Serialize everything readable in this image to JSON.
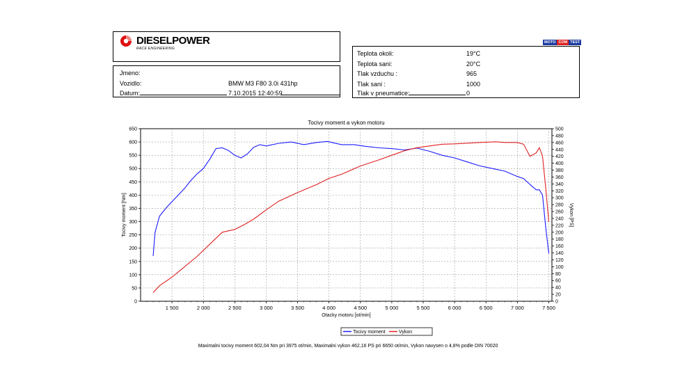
{
  "header": {
    "brand_name": "DIESELPOWER",
    "brand_tagline": "RACE ENGINEERING",
    "badge_moto": "MOTO",
    "badge_com": "COM",
    "badge_test": "TEST"
  },
  "vehicle": {
    "rows": [
      {
        "label": "Jmeno:",
        "value": ""
      },
      {
        "label": "Vozidlo:",
        "value": "BMW M3 F80 3.0i 431hp"
      },
      {
        "label": "Datum:",
        "value": "7.10.2015 12:40:59"
      }
    ]
  },
  "conditions": {
    "rows": [
      {
        "label": "Teplota okoli:",
        "value": "19°C"
      },
      {
        "label": "Teplota sani:",
        "value": "20°C"
      },
      {
        "label": "Tlak vzduchu :",
        "value": "965"
      },
      {
        "label": "Tlak sani :",
        "value": "1000"
      },
      {
        "label": "Tlak v pneumatice:",
        "value": "0"
      }
    ]
  },
  "summary": "Maximalni tocivy moment 602,04 Nm pri 3975 ot/min,  Maximalni vykon 462,16 PS pri 6650 ot/min,  Vykon navysen o 4,8% podle DIN 70020",
  "colors": {
    "torque": "#1a1aff",
    "power": "#e02020",
    "grid": "#9a9a9a"
  },
  "chart_data": {
    "type": "line",
    "title": "Tocivy moment a vykon motoru",
    "xlabel": "Otacky motoru [ot/min]",
    "ylabel_left": "Tocivy moment [Nm]",
    "ylabel_right": "Vykon [PS]",
    "xlim": [
      1000,
      7550
    ],
    "ylim_left": [
      0,
      650
    ],
    "ylim_right": [
      0,
      500
    ],
    "x_ticks": [
      1500,
      2000,
      2500,
      3000,
      3500,
      4000,
      4500,
      5000,
      5500,
      6000,
      6500,
      7000,
      7500
    ],
    "x_tick_labels": [
      "1 500",
      "2 000",
      "2 500",
      "3 000",
      "3 500",
      "4 000",
      "4 500",
      "5 000",
      "5 500",
      "6 000",
      "6 500",
      "7 000",
      "7 500"
    ],
    "y_left_ticks": [
      0,
      50,
      100,
      150,
      200,
      250,
      300,
      350,
      400,
      450,
      500,
      550,
      600,
      650
    ],
    "y_right_ticks": [
      0,
      20,
      40,
      60,
      80,
      100,
      120,
      140,
      160,
      180,
      200,
      220,
      240,
      260,
      280,
      300,
      320,
      340,
      360,
      380,
      400,
      420,
      440,
      460,
      480,
      500
    ],
    "grid": true,
    "legend": "bottom-center",
    "series": [
      {
        "name": "Tocivy moment",
        "axis": "left",
        "x": [
          1200,
          1230,
          1300,
          1400,
          1500,
          1600,
          1700,
          1800,
          1900,
          2000,
          2100,
          2200,
          2300,
          2400,
          2500,
          2600,
          2700,
          2800,
          2900,
          3000,
          3200,
          3400,
          3600,
          3800,
          3975,
          4200,
          4400,
          4600,
          4800,
          5000,
          5200,
          5400,
          5600,
          5800,
          6000,
          6200,
          6400,
          6600,
          6800,
          7000,
          7100,
          7200,
          7300,
          7350,
          7400,
          7450,
          7500
        ],
        "values": [
          170,
          260,
          320,
          350,
          375,
          400,
          425,
          455,
          480,
          500,
          535,
          575,
          578,
          568,
          550,
          540,
          555,
          580,
          590,
          585,
          595,
          600,
          590,
          598,
          602,
          590,
          590,
          583,
          578,
          575,
          570,
          577,
          565,
          550,
          540,
          525,
          510,
          500,
          490,
          470,
          462,
          440,
          420,
          420,
          400,
          280,
          180
        ]
      },
      {
        "name": "Vykon",
        "axis": "right",
        "x": [
          1200,
          1300,
          1500,
          1700,
          1900,
          2100,
          2300,
          2500,
          2650,
          2800,
          3000,
          3200,
          3500,
          3800,
          4000,
          4200,
          4500,
          4800,
          5000,
          5200,
          5400,
          5600,
          5800,
          6000,
          6200,
          6400,
          6650,
          6800,
          7000,
          7100,
          7200,
          7300,
          7350,
          7400,
          7450,
          7500
        ],
        "values": [
          25,
          45,
          70,
          100,
          130,
          165,
          200,
          208,
          222,
          238,
          265,
          290,
          315,
          338,
          356,
          368,
          392,
          410,
          423,
          436,
          445,
          450,
          455,
          456,
          458,
          460,
          462,
          460,
          460,
          455,
          420,
          430,
          445,
          420,
          330,
          230
        ]
      }
    ]
  }
}
